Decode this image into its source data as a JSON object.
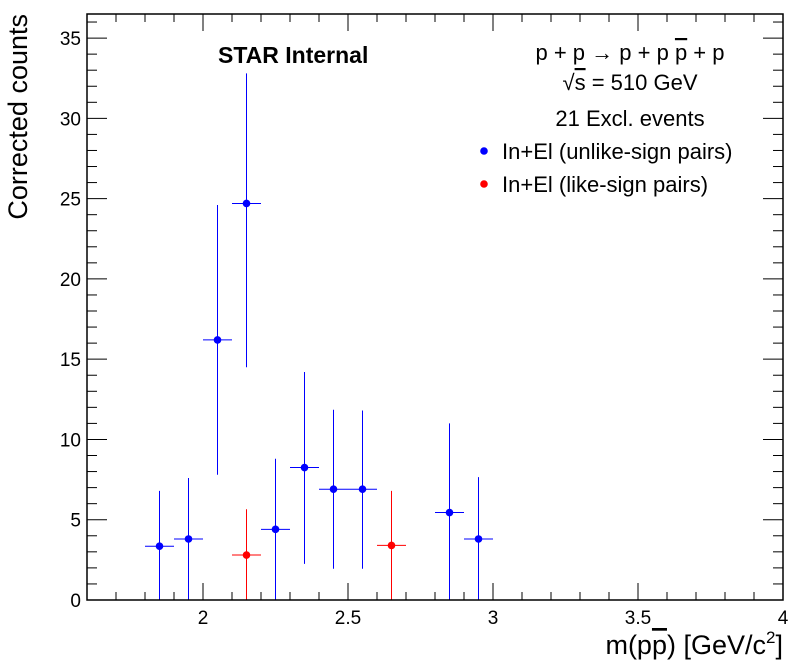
{
  "chart_data": {
    "type": "scatter",
    "title": "",
    "xlabel": "m(pp̄) [GeV/c²]",
    "xlabel_parts": {
      "prefix": "m(p",
      "bar": "p",
      "suffix": ") [GeV/c",
      "sup": "2",
      "close": "]"
    },
    "ylabel": "Corrected counts",
    "xlim": [
      1.6,
      4.0
    ],
    "ylim": [
      0,
      36.5
    ],
    "xticks": [
      2,
      2.5,
      3,
      3.5,
      4
    ],
    "xtick_labels": [
      "2",
      "2.5",
      "3",
      "3.5",
      "4"
    ],
    "yticks": [
      0,
      5,
      10,
      15,
      20,
      25,
      30,
      35
    ],
    "ytick_labels": [
      "0",
      "5",
      "10",
      "15",
      "20",
      "25",
      "30",
      "35"
    ],
    "grid": false,
    "legend_position": "top-right",
    "annotations": {
      "watermark": "STAR Internal",
      "reaction": {
        "left": "p + p → p + p ",
        "bar": "p",
        "right": " + p"
      },
      "energy": {
        "root": "√",
        "s": "s",
        "rest": " = 510 GeV"
      },
      "events": "21 Excl. events"
    },
    "series": [
      {
        "name": "In+El (unlike-sign pairs)",
        "color": "#0000ff",
        "points": [
          {
            "x": 1.85,
            "y": 3.35,
            "yerr_low": 3.35,
            "yerr_high": 3.45,
            "xerr": 0.05
          },
          {
            "x": 1.95,
            "y": 3.8,
            "yerr_low": 3.8,
            "yerr_high": 3.8,
            "xerr": 0.05
          },
          {
            "x": 2.05,
            "y": 16.2,
            "yerr_low": 8.4,
            "yerr_high": 8.4,
            "xerr": 0.05
          },
          {
            "x": 2.15,
            "y": 24.7,
            "yerr_low": 10.2,
            "yerr_high": 8.1,
            "xerr": 0.05
          },
          {
            "x": 2.25,
            "y": 4.4,
            "yerr_low": 4.4,
            "yerr_high": 4.4,
            "xerr": 0.05
          },
          {
            "x": 2.35,
            "y": 8.25,
            "yerr_low": 6.0,
            "yerr_high": 5.95,
            "xerr": 0.05
          },
          {
            "x": 2.45,
            "y": 6.9,
            "yerr_low": 4.95,
            "yerr_high": 4.95,
            "xerr": 0.05
          },
          {
            "x": 2.55,
            "y": 6.9,
            "yerr_low": 4.95,
            "yerr_high": 4.9,
            "xerr": 0.05
          },
          {
            "x": 2.85,
            "y": 5.45,
            "yerr_low": 5.45,
            "yerr_high": 5.55,
            "xerr": 0.05
          },
          {
            "x": 2.95,
            "y": 3.8,
            "yerr_low": 3.8,
            "yerr_high": 3.85,
            "xerr": 0.05
          }
        ]
      },
      {
        "name": "In+El (like-sign pairs)",
        "color": "#ff0000",
        "points": [
          {
            "x": 2.15,
            "y": 2.8,
            "yerr_low": 2.8,
            "yerr_high": 2.85,
            "xerr": 0.05
          },
          {
            "x": 2.65,
            "y": 3.4,
            "yerr_low": 3.4,
            "yerr_high": 3.4,
            "xerr": 0.05
          }
        ]
      }
    ]
  }
}
